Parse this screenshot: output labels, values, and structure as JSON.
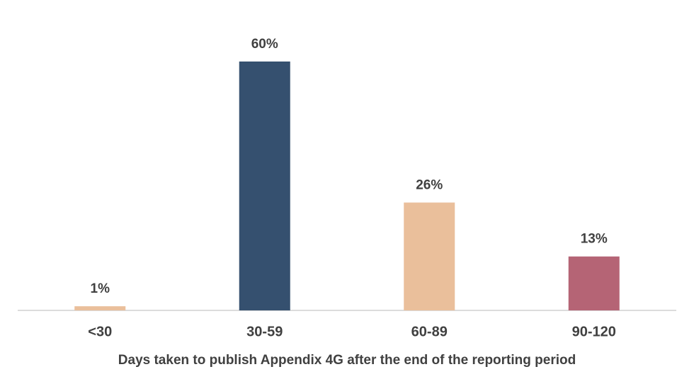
{
  "chart_data": {
    "type": "bar",
    "x_label": "Days taken to publish Appendix 4G after the end of the reporting period",
    "categories": [
      "<30",
      "30-59",
      "60-89",
      "90-120"
    ],
    "values": [
      1,
      60,
      26,
      13
    ],
    "value_labels": [
      "1%",
      "60%",
      "26%",
      "13%"
    ],
    "colors": [
      "#eabf9b",
      "#35506f",
      "#eabf9b",
      "#b56475"
    ],
    "grid": false
  }
}
